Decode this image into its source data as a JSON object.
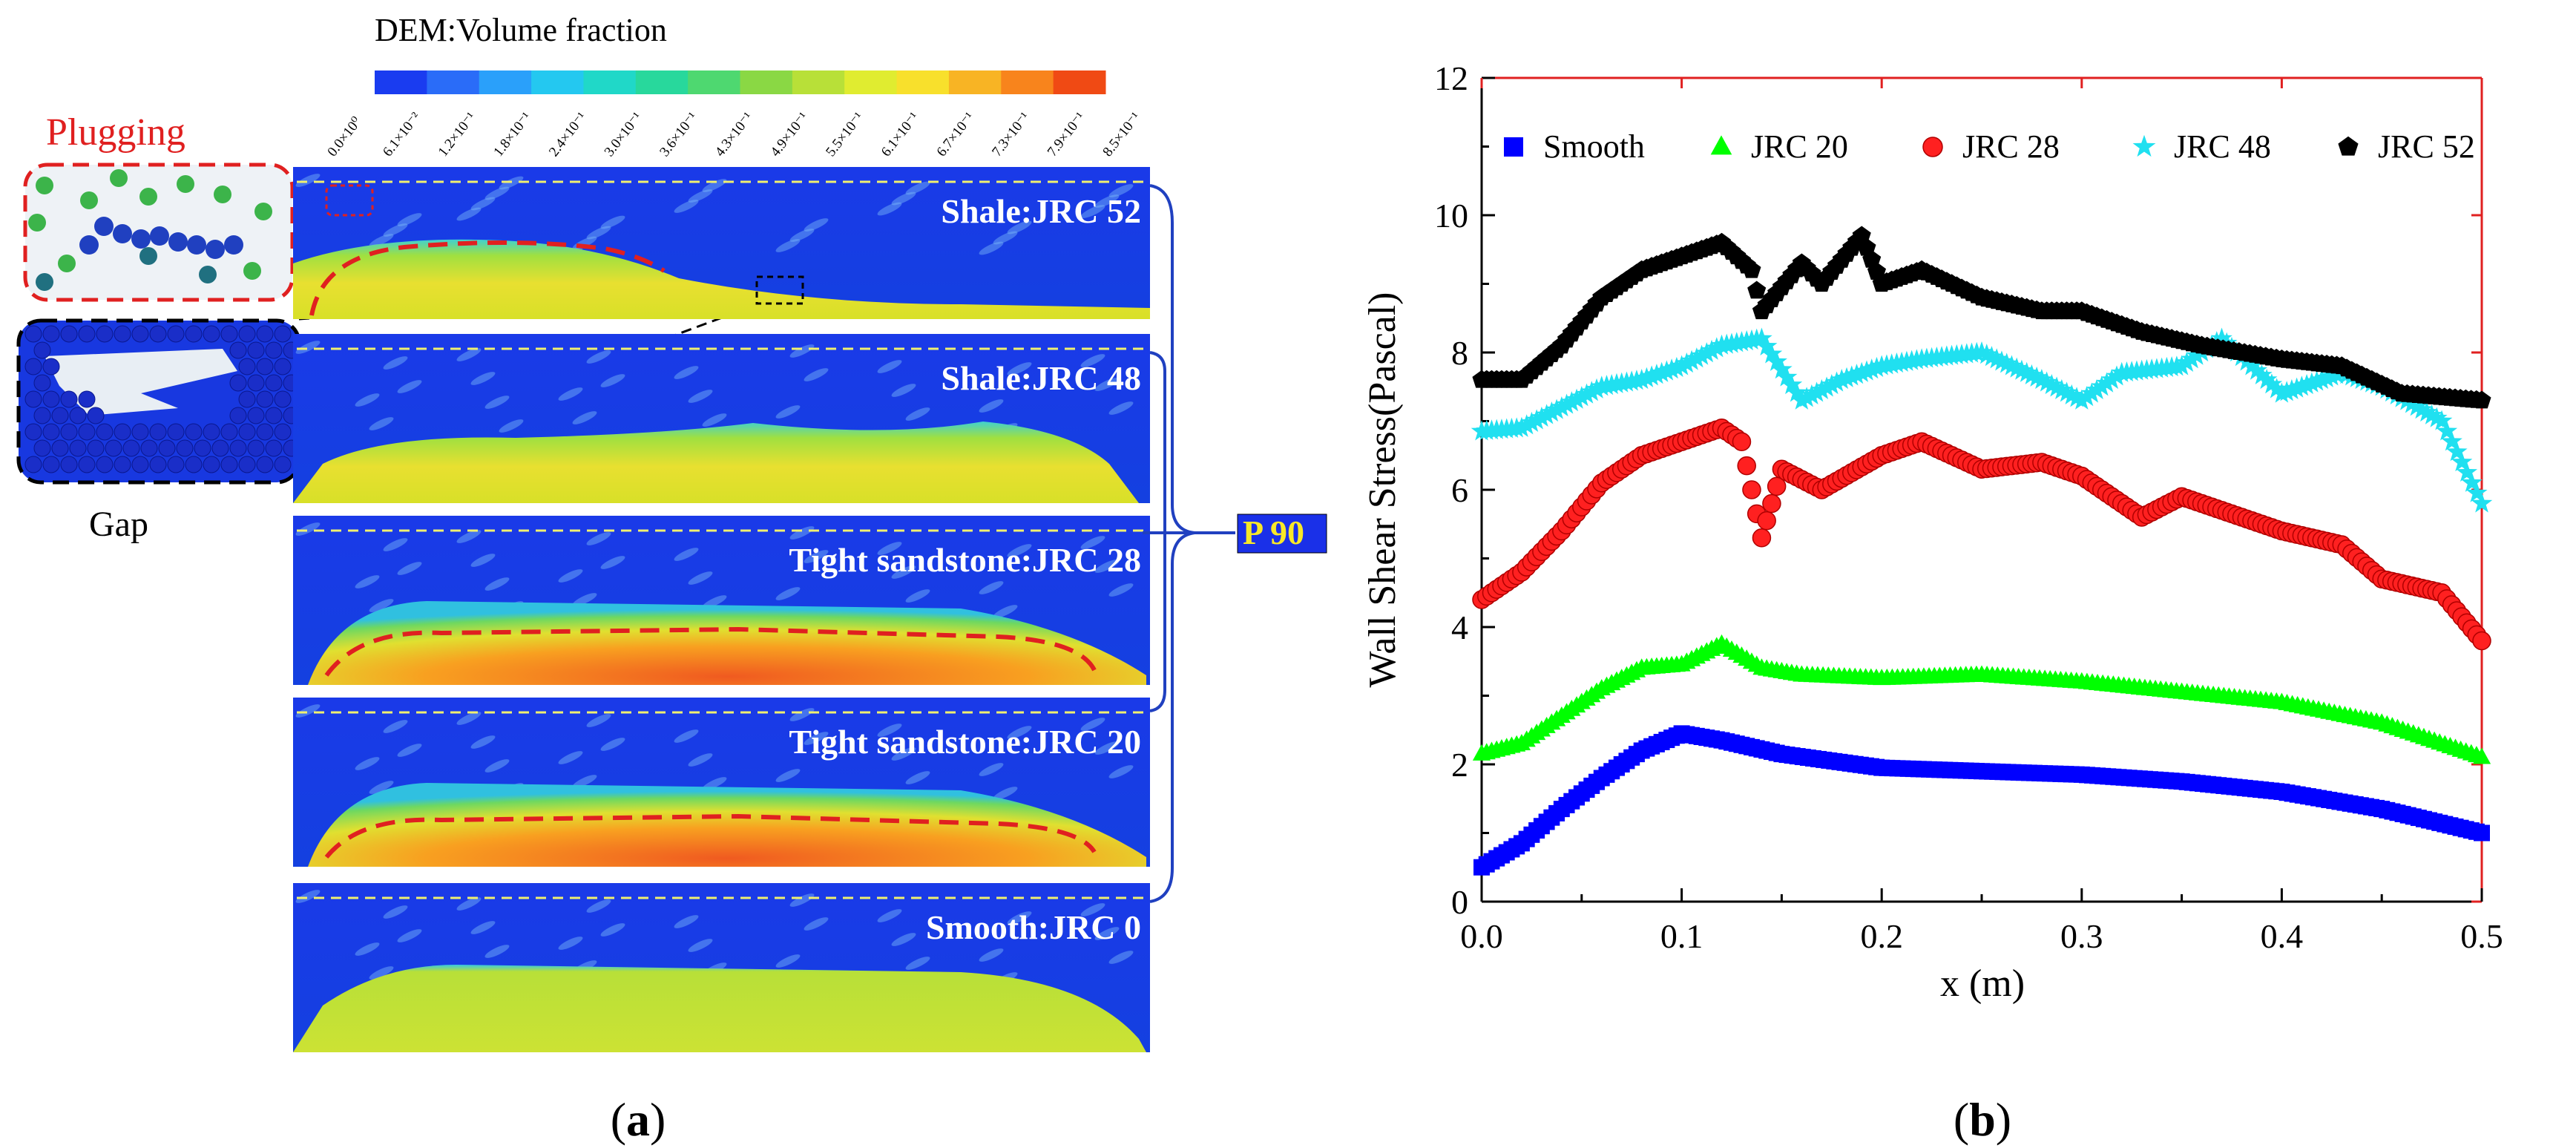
{
  "panel_a": {
    "caption": "(a)",
    "colorbar_title": "DEM:Volume fraction",
    "colorbar_colors": [
      "#1a3cf0",
      "#2a6cf8",
      "#2aa0fa",
      "#24c8f0",
      "#20d8c8",
      "#28d89c",
      "#4ed870",
      "#8ad844",
      "#b8e038",
      "#e0ec30",
      "#f8e02c",
      "#f8b424",
      "#f8841c",
      "#f04a14"
    ],
    "colorbar_ticks": [
      "0.0×10⁰",
      "6.1×10⁻²",
      "1.2×10⁻¹",
      "1.8×10⁻¹",
      "2.4×10⁻¹",
      "3.0×10⁻¹",
      "3.6×10⁻¹",
      "4.3×10⁻¹",
      "4.9×10⁻¹",
      "5.5×10⁻¹",
      "6.1×10⁻¹",
      "6.7×10⁻¹",
      "7.3×10⁻¹",
      "7.9×10⁻¹",
      "8.5×10⁻¹"
    ],
    "plugging_label": "Plugging",
    "gap_label": "Gap",
    "group_label": "P 90",
    "strips": [
      {
        "label": "Shale:JRC 52"
      },
      {
        "label": "Shale:JRC 48"
      },
      {
        "label": "Tight sandstone:JRC 28"
      },
      {
        "label": "Tight sandstone:JRC 20"
      },
      {
        "label": "Smooth:JRC 0"
      }
    ]
  },
  "panel_b": {
    "caption": "(b)",
    "chart_data": {
      "type": "scatter",
      "xlabel": "x (m)",
      "ylabel": "Wall Shear Stress(Pascal)",
      "xlim": [
        0,
        0.5
      ],
      "ylim": [
        0,
        12
      ],
      "xticks": [
        "0.0",
        "0.1",
        "0.2",
        "0.3",
        "0.4",
        "0.5"
      ],
      "yticks": [
        "0",
        "2",
        "4",
        "6",
        "8",
        "10",
        "12"
      ],
      "legend_position": "top",
      "series": [
        {
          "name": "Smooth",
          "color": "#0000ff",
          "marker": "square",
          "points": [
            [
              0,
              0.5
            ],
            [
              0.02,
              0.85
            ],
            [
              0.04,
              1.35
            ],
            [
              0.06,
              1.8
            ],
            [
              0.08,
              2.2
            ],
            [
              0.1,
              2.45
            ],
            [
              0.12,
              2.35
            ],
            [
              0.15,
              2.15
            ],
            [
              0.2,
              1.95
            ],
            [
              0.25,
              1.9
            ],
            [
              0.3,
              1.85
            ],
            [
              0.35,
              1.75
            ],
            [
              0.4,
              1.6
            ],
            [
              0.45,
              1.35
            ],
            [
              0.5,
              1.0
            ]
          ]
        },
        {
          "name": "JRC 20",
          "color": "#00ff00",
          "marker": "triangle",
          "points": [
            [
              0,
              2.15
            ],
            [
              0.02,
              2.3
            ],
            [
              0.04,
              2.7
            ],
            [
              0.06,
              3.1
            ],
            [
              0.08,
              3.4
            ],
            [
              0.1,
              3.45
            ],
            [
              0.12,
              3.75
            ],
            [
              0.14,
              3.4
            ],
            [
              0.16,
              3.3
            ],
            [
              0.2,
              3.25
            ],
            [
              0.25,
              3.3
            ],
            [
              0.3,
              3.2
            ],
            [
              0.35,
              3.05
            ],
            [
              0.4,
              2.9
            ],
            [
              0.45,
              2.6
            ],
            [
              0.5,
              2.1
            ]
          ]
        },
        {
          "name": "JRC 28",
          "color": "#ff2020",
          "marker": "circle",
          "points": [
            [
              0,
              4.4
            ],
            [
              0.02,
              4.8
            ],
            [
              0.04,
              5.4
            ],
            [
              0.06,
              6.1
            ],
            [
              0.08,
              6.5
            ],
            [
              0.1,
              6.7
            ],
            [
              0.12,
              6.9
            ],
            [
              0.13,
              6.7
            ],
            [
              0.14,
              5.3
            ],
            [
              0.15,
              6.3
            ],
            [
              0.17,
              6.0
            ],
            [
              0.2,
              6.5
            ],
            [
              0.22,
              6.7
            ],
            [
              0.25,
              6.3
            ],
            [
              0.28,
              6.4
            ],
            [
              0.3,
              6.2
            ],
            [
              0.33,
              5.6
            ],
            [
              0.35,
              5.9
            ],
            [
              0.38,
              5.6
            ],
            [
              0.4,
              5.4
            ],
            [
              0.43,
              5.2
            ],
            [
              0.45,
              4.7
            ],
            [
              0.48,
              4.5
            ],
            [
              0.5,
              3.8
            ]
          ]
        },
        {
          "name": "JRC 48",
          "color": "#20e0f0",
          "marker": "star",
          "points": [
            [
              0,
              6.85
            ],
            [
              0.02,
              6.9
            ],
            [
              0.04,
              7.2
            ],
            [
              0.06,
              7.5
            ],
            [
              0.08,
              7.6
            ],
            [
              0.1,
              7.8
            ],
            [
              0.12,
              8.1
            ],
            [
              0.14,
              8.2
            ],
            [
              0.16,
              7.3
            ],
            [
              0.18,
              7.6
            ],
            [
              0.2,
              7.8
            ],
            [
              0.22,
              7.9
            ],
            [
              0.25,
              8.0
            ],
            [
              0.28,
              7.6
            ],
            [
              0.3,
              7.3
            ],
            [
              0.32,
              7.7
            ],
            [
              0.35,
              7.8
            ],
            [
              0.37,
              8.2
            ],
            [
              0.4,
              7.4
            ],
            [
              0.43,
              7.7
            ],
            [
              0.45,
              7.5
            ],
            [
              0.48,
              7.0
            ],
            [
              0.5,
              5.8
            ]
          ]
        },
        {
          "name": "JRC 52",
          "color": "#000000",
          "marker": "pentagon",
          "points": [
            [
              0,
              7.6
            ],
            [
              0.02,
              7.6
            ],
            [
              0.04,
              8.1
            ],
            [
              0.06,
              8.8
            ],
            [
              0.08,
              9.2
            ],
            [
              0.1,
              9.4
            ],
            [
              0.12,
              9.6
            ],
            [
              0.135,
              9.2
            ],
            [
              0.14,
              8.6
            ],
            [
              0.16,
              9.3
            ],
            [
              0.17,
              9.0
            ],
            [
              0.19,
              9.7
            ],
            [
              0.2,
              9.0
            ],
            [
              0.22,
              9.2
            ],
            [
              0.25,
              8.8
            ],
            [
              0.28,
              8.6
            ],
            [
              0.3,
              8.6
            ],
            [
              0.33,
              8.3
            ],
            [
              0.36,
              8.1
            ],
            [
              0.4,
              7.9
            ],
            [
              0.43,
              7.8
            ],
            [
              0.46,
              7.4
            ],
            [
              0.5,
              7.3
            ]
          ]
        }
      ]
    }
  }
}
